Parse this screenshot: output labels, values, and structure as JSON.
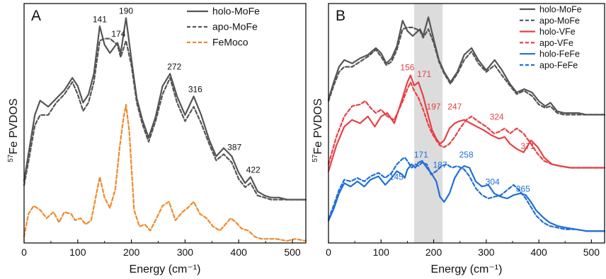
{
  "chart_data": [
    {
      "type": "line",
      "panel": "A",
      "xlabel": "Energy (cm⁻¹)",
      "ylabel": "57Fe PVDOS",
      "ylabel_parts": {
        "sup": "57",
        "text": "Fe PVDOS"
      },
      "xlim": [
        0,
        525
      ],
      "xticks": [
        0,
        100,
        200,
        300,
        400,
        500
      ],
      "yticks_shown": false,
      "legend_position": "top-right",
      "grid": false,
      "series": [
        {
          "name": "holo-MoFe",
          "color": "#555555",
          "style": "solid",
          "x": [
            0,
            10,
            20,
            30,
            45,
            60,
            75,
            90,
            100,
            110,
            120,
            130,
            141,
            150,
            160,
            174,
            180,
            190,
            200,
            210,
            220,
            232,
            245,
            258,
            272,
            285,
            300,
            316,
            330,
            345,
            358,
            372,
            387,
            400,
            412,
            422,
            435,
            448,
            460,
            475,
            490,
            505,
            525
          ],
          "y": [
            0.18,
            0.34,
            0.5,
            0.57,
            0.54,
            0.58,
            0.62,
            0.68,
            0.64,
            0.56,
            0.6,
            0.7,
            0.93,
            0.84,
            0.8,
            0.85,
            0.8,
            0.97,
            0.77,
            0.58,
            0.48,
            0.39,
            0.49,
            0.64,
            0.7,
            0.59,
            0.5,
            0.59,
            0.5,
            0.38,
            0.3,
            0.34,
            0.3,
            0.22,
            0.17,
            0.2,
            0.13,
            0.11,
            0.1,
            0.1,
            0.09,
            0.09,
            0.09
          ]
        },
        {
          "name": "apo-MoFe",
          "color": "#555555",
          "style": "dashed",
          "x": [
            0,
            10,
            20,
            30,
            45,
            60,
            75,
            90,
            100,
            110,
            120,
            130,
            141,
            150,
            160,
            174,
            180,
            190,
            200,
            210,
            220,
            232,
            245,
            258,
            272,
            285,
            300,
            316,
            330,
            345,
            358,
            372,
            387,
            400,
            412,
            422,
            435,
            448,
            460,
            475,
            490,
            505,
            525
          ],
          "y": [
            0.16,
            0.3,
            0.45,
            0.5,
            0.5,
            0.56,
            0.6,
            0.66,
            0.6,
            0.52,
            0.56,
            0.66,
            0.86,
            0.87,
            0.87,
            0.84,
            0.78,
            0.86,
            0.74,
            0.56,
            0.46,
            0.37,
            0.47,
            0.6,
            0.68,
            0.56,
            0.47,
            0.54,
            0.46,
            0.36,
            0.28,
            0.31,
            0.27,
            0.19,
            0.15,
            0.17,
            0.11,
            0.1,
            0.09,
            0.09,
            0.09,
            0.09,
            0.09
          ]
        },
        {
          "name": "FeMoco",
          "color": "#ee8a2c",
          "style": "dashed",
          "x": [
            0,
            8,
            18,
            30,
            42,
            55,
            65,
            75,
            88,
            95,
            105,
            115,
            125,
            135,
            141,
            150,
            160,
            170,
            178,
            185,
            190,
            196,
            205,
            215,
            225,
            235,
            245,
            258,
            270,
            282,
            295,
            305,
            316,
            328,
            340,
            352,
            365,
            375,
            385,
            395,
            405,
            418,
            430,
            442,
            455,
            470,
            490,
            505,
            525
          ],
          "y": [
            -0.09,
            0.02,
            0.06,
            0.04,
            0.0,
            0.03,
            -0.02,
            0.03,
            0.02,
            -0.01,
            0.0,
            -0.03,
            -0.01,
            0.12,
            0.2,
            0.1,
            0.05,
            0.14,
            0.34,
            0.48,
            0.55,
            0.42,
            0.04,
            -0.04,
            -0.03,
            -0.06,
            -0.01,
            0.06,
            0.08,
            -0.01,
            0.03,
            0.05,
            0.08,
            0.02,
            0.0,
            -0.04,
            -0.06,
            -0.03,
            0.0,
            -0.02,
            -0.05,
            -0.06,
            -0.09,
            -0.1,
            -0.1,
            -0.1,
            -0.11,
            -0.1,
            -0.11
          ]
        }
      ],
      "annotations": [
        {
          "text": "141",
          "x": 141,
          "y": 0.95
        },
        {
          "text": "174",
          "x": 176,
          "y": 0.88
        },
        {
          "text": "190",
          "x": 190,
          "y": 0.99
        },
        {
          "text": "272",
          "x": 280,
          "y": 0.72
        },
        {
          "text": "316",
          "x": 319,
          "y": 0.61
        },
        {
          "text": "387",
          "x": 392,
          "y": 0.33
        },
        {
          "text": "422",
          "x": 427,
          "y": 0.22
        }
      ],
      "colors": {
        "holo": "#555555",
        "feMoco": "#ee8a2c"
      }
    },
    {
      "type": "line",
      "panel": "B",
      "xlabel": "Energy (cm⁻¹)",
      "ylabel": "57Fe PVDOS",
      "ylabel_parts": {
        "sup": "57",
        "text": "Fe PVDOS"
      },
      "xlim": [
        0,
        525
      ],
      "xticks": [
        0,
        100,
        200,
        300,
        400,
        500
      ],
      "yticks_shown": false,
      "legend_position": "top-right",
      "grid": false,
      "highlight_band_x": [
        163,
        217
      ],
      "series": [
        {
          "name": "holo-MoFe",
          "color": "#555555",
          "style": "solid",
          "x": [
            0,
            10,
            20,
            30,
            45,
            60,
            75,
            90,
            100,
            110,
            120,
            130,
            141,
            150,
            160,
            174,
            180,
            190,
            200,
            210,
            220,
            232,
            245,
            258,
            272,
            285,
            300,
            316,
            330,
            345,
            358,
            372,
            387,
            400,
            412,
            422,
            435,
            448,
            460,
            475,
            490,
            505,
            525
          ],
          "y": [
            0.5,
            0.6,
            0.69,
            0.73,
            0.71,
            0.74,
            0.76,
            0.8,
            0.77,
            0.71,
            0.74,
            0.81,
            0.96,
            0.9,
            0.87,
            0.91,
            0.87,
            0.98,
            0.85,
            0.73,
            0.66,
            0.6,
            0.66,
            0.76,
            0.8,
            0.73,
            0.67,
            0.73,
            0.67,
            0.59,
            0.54,
            0.56,
            0.54,
            0.49,
            0.46,
            0.48,
            0.43,
            0.42,
            0.42,
            0.42,
            0.41,
            0.41,
            0.41
          ]
        },
        {
          "name": "apo-MoFe",
          "color": "#555555",
          "style": "dashed",
          "x": [
            0,
            10,
            20,
            30,
            45,
            60,
            75,
            90,
            100,
            110,
            120,
            130,
            141,
            150,
            160,
            174,
            180,
            190,
            200,
            210,
            220,
            232,
            245,
            258,
            272,
            285,
            300,
            316,
            330,
            345,
            358,
            372,
            387,
            400,
            412,
            422,
            435,
            448,
            460,
            475,
            490,
            505,
            525
          ],
          "y": [
            0.49,
            0.58,
            0.66,
            0.69,
            0.69,
            0.72,
            0.75,
            0.79,
            0.75,
            0.7,
            0.72,
            0.79,
            0.91,
            0.92,
            0.92,
            0.9,
            0.86,
            0.91,
            0.83,
            0.72,
            0.65,
            0.59,
            0.65,
            0.73,
            0.78,
            0.71,
            0.66,
            0.7,
            0.64,
            0.58,
            0.53,
            0.55,
            0.52,
            0.47,
            0.45,
            0.46,
            0.42,
            0.41,
            0.41,
            0.41,
            0.41,
            0.41,
            0.41
          ]
        },
        {
          "name": "holo-VFe",
          "color": "#e84045",
          "style": "solid",
          "x": [
            0,
            15,
            30,
            45,
            60,
            75,
            88,
            100,
            112,
            125,
            140,
            150,
            156,
            163,
            171,
            180,
            190,
            197,
            205,
            212,
            220,
            230,
            240,
            247,
            258,
            270,
            282,
            295,
            310,
            324,
            335,
            345,
            358,
            371,
            385,
            398,
            410,
            425,
            440,
            460,
            480,
            500,
            525
          ],
          "y": [
            0.08,
            0.23,
            0.34,
            0.38,
            0.36,
            0.4,
            0.34,
            0.4,
            0.42,
            0.36,
            0.5,
            0.6,
            0.64,
            0.58,
            0.6,
            0.52,
            0.4,
            0.32,
            0.27,
            0.24,
            0.26,
            0.33,
            0.36,
            0.37,
            0.38,
            0.36,
            0.34,
            0.32,
            0.29,
            0.27,
            0.28,
            0.24,
            0.21,
            0.19,
            0.26,
            0.22,
            0.16,
            0.12,
            0.11,
            0.1,
            0.1,
            0.1,
            0.1
          ]
        },
        {
          "name": "apo-VFe",
          "color": "#e84045",
          "style": "dashed",
          "x": [
            0,
            15,
            30,
            45,
            60,
            70,
            80,
            90,
            100,
            112,
            125,
            140,
            150,
            156,
            163,
            171,
            180,
            190,
            197,
            205,
            212,
            220,
            230,
            240,
            250,
            262,
            272,
            285,
            300,
            315,
            324,
            335,
            345,
            358,
            371,
            385,
            398,
            410,
            425,
            440,
            460,
            480,
            500,
            525
          ],
          "y": [
            0.12,
            0.28,
            0.4,
            0.46,
            0.47,
            0.49,
            0.45,
            0.42,
            0.44,
            0.4,
            0.38,
            0.48,
            0.56,
            0.6,
            0.55,
            0.51,
            0.44,
            0.35,
            0.3,
            0.26,
            0.23,
            0.22,
            0.24,
            0.28,
            0.33,
            0.38,
            0.4,
            0.37,
            0.34,
            0.3,
            0.31,
            0.33,
            0.3,
            0.33,
            0.3,
            0.24,
            0.18,
            0.14,
            0.12,
            0.11,
            0.1,
            0.1,
            0.1,
            0.1
          ]
        },
        {
          "name": "holo-FeFe",
          "color": "#1f6fd6",
          "style": "solid",
          "x": [
            0,
            10,
            20,
            30,
            42,
            55,
            68,
            80,
            95,
            108,
            120,
            130,
            140,
            145,
            150,
            158,
            165,
            171,
            178,
            187,
            195,
            205,
            212,
            220,
            230,
            240,
            250,
            258,
            268,
            280,
            292,
            304,
            315,
            328,
            340,
            352,
            365,
            375,
            385,
            395,
            408,
            420,
            435,
            450,
            470,
            490,
            510,
            525
          ],
          "y": [
            -0.21,
            -0.14,
            -0.05,
            0.01,
            -0.01,
            0.02,
            -0.01,
            0.03,
            0.05,
            0.0,
            0.04,
            0.08,
            0.06,
            0.04,
            0.09,
            0.12,
            0.1,
            0.13,
            0.14,
            0.1,
            0.07,
            0.02,
            -0.07,
            -0.1,
            -0.05,
            0.04,
            0.09,
            0.11,
            0.1,
            0.02,
            -0.01,
            0.0,
            -0.05,
            -0.07,
            -0.08,
            -0.06,
            -0.05,
            -0.06,
            -0.1,
            -0.15,
            -0.19,
            -0.22,
            -0.24,
            -0.25,
            -0.26,
            -0.27,
            -0.27,
            -0.27
          ]
        },
        {
          "name": "apo-FeFe",
          "color": "#1f6fd6",
          "style": "dashed",
          "x": [
            0,
            10,
            20,
            30,
            42,
            55,
            68,
            80,
            95,
            108,
            120,
            130,
            140,
            145,
            150,
            158,
            165,
            171,
            178,
            187,
            195,
            205,
            215,
            225,
            235,
            245,
            258,
            268,
            280,
            292,
            304,
            315,
            328,
            340,
            352,
            365,
            375,
            385,
            395,
            408,
            420,
            435,
            450,
            470,
            490,
            510,
            525
          ],
          "y": [
            -0.2,
            -0.12,
            -0.03,
            0.03,
            0.02,
            0.04,
            0.02,
            0.05,
            0.07,
            0.04,
            0.07,
            0.12,
            0.15,
            0.16,
            0.14,
            0.1,
            0.12,
            0.11,
            0.13,
            0.12,
            0.06,
            0.08,
            0.11,
            0.12,
            0.1,
            0.11,
            0.09,
            0.05,
            -0.02,
            -0.06,
            -0.08,
            -0.07,
            -0.06,
            -0.03,
            0.0,
            -0.04,
            -0.08,
            -0.13,
            -0.18,
            -0.22,
            -0.24,
            -0.25,
            -0.26,
            -0.26,
            -0.27,
            -0.27,
            -0.27
          ]
        }
      ],
      "annotations": [
        {
          "text": "156",
          "x": 150,
          "y": 0.67,
          "color": "#e84045"
        },
        {
          "text": "171",
          "x": 182,
          "y": 0.63,
          "color": "#e84045"
        },
        {
          "text": "197",
          "x": 200,
          "y": 0.44,
          "color": "#e84045"
        },
        {
          "text": "247",
          "x": 240,
          "y": 0.44,
          "color": "#e84045"
        },
        {
          "text": "324",
          "x": 320,
          "y": 0.38,
          "color": "#e84045"
        },
        {
          "text": "371",
          "x": 379,
          "y": 0.21,
          "color": "#e84045"
        },
        {
          "text": "171",
          "x": 176,
          "y": 0.16,
          "color": "#1f6fd6"
        },
        {
          "text": "145",
          "x": 129,
          "y": 0.03,
          "color": "#1f6fd6"
        },
        {
          "text": "187",
          "x": 212,
          "y": 0.1,
          "color": "#1f6fd6"
        },
        {
          "text": "258",
          "x": 262,
          "y": 0.16,
          "color": "#1f6fd6"
        },
        {
          "text": "304",
          "x": 312,
          "y": 0.0,
          "color": "#1f6fd6"
        },
        {
          "text": "365",
          "x": 370,
          "y": -0.04,
          "color": "#1f6fd6"
        }
      ],
      "colors": {
        "mofe": "#555555",
        "vfe": "#e84045",
        "fefe": "#1f6fd6",
        "band": "#dcdcdc"
      }
    }
  ]
}
